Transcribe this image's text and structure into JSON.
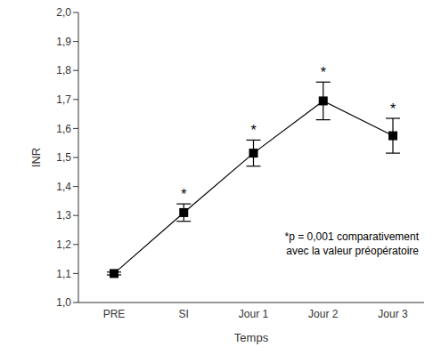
{
  "chart_data": {
    "type": "line",
    "x_label": "Temps",
    "y_label": "INR",
    "categories": [
      "PRE",
      "SI",
      "Jour 1",
      "Jour 2",
      "Jour 3"
    ],
    "values": [
      1.1,
      1.31,
      1.515,
      1.695,
      1.575
    ],
    "errors": [
      0.005,
      0.03,
      0.045,
      0.065,
      0.06
    ],
    "significance": [
      null,
      "*",
      "*",
      "*",
      "*"
    ],
    "annotation": [
      "*p = 0,001 comparativement",
      "avec la valeur préopératoire"
    ],
    "color": "#000000",
    "marker": "square",
    "line_style": "solid",
    "grid": false,
    "ylim": [
      1.0,
      2.0
    ],
    "yticks": [
      {
        "value": 1.0,
        "label": "1,0"
      },
      {
        "value": 1.1,
        "label": "1,1"
      },
      {
        "value": 1.2,
        "label": "1,2"
      },
      {
        "value": 1.3,
        "label": "1,3"
      },
      {
        "value": 1.4,
        "label": "1,4"
      },
      {
        "value": 1.5,
        "label": "1,5"
      },
      {
        "value": 1.6,
        "label": "1,6"
      },
      {
        "value": 1.7,
        "label": "1,7"
      },
      {
        "value": 1.8,
        "label": "1,8"
      },
      {
        "value": 1.9,
        "label": "1,9"
      },
      {
        "value": 2.0,
        "label": "2,0"
      }
    ]
  }
}
